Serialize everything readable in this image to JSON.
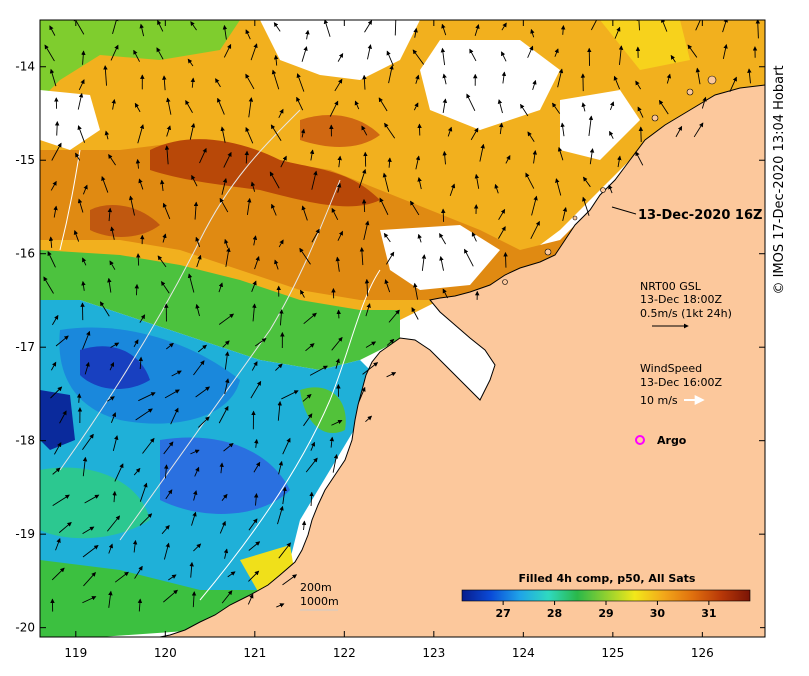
{
  "map": {
    "timestamp": "13-Dec-2020 16Z",
    "x_axis": {
      "ticks": [
        "119",
        "120",
        "121",
        "122",
        "123",
        "124",
        "125",
        "126"
      ],
      "range": [
        118.6,
        126.7
      ]
    },
    "y_axis": {
      "ticks": [
        "-14",
        "-15",
        "-16",
        "-17",
        "-18",
        "-19",
        "-20"
      ],
      "range": [
        -20.1,
        -13.5
      ]
    },
    "colorbar": {
      "title": "Filled 4h comp, p50, All Sats",
      "ticks": [
        "27",
        "28",
        "29",
        "30",
        "31"
      ],
      "range": [
        26.2,
        31.8
      ]
    },
    "legend": {
      "current_title": "NRT00 GSL",
      "current_time": "13-Dec 18:00Z",
      "current_scale": "0.5m/s (1kt 24h)",
      "wind_title": "WindSpeed",
      "wind_time": "13-Dec 16:00Z",
      "wind_scale": "10 m/s",
      "argo_label": "Argo"
    },
    "isobaths": {
      "label_200": "200m",
      "label_1000": "1000m"
    },
    "credit": "IMOS 17-Dec-2020 13:04 Hobart",
    "copyright_symbol": "©",
    "colors": {
      "land": "#fcc89c",
      "no_data": "#ffffff",
      "argo": "#ff00ff",
      "colorbar_stops": [
        "#081c8c",
        "#0a4bd8",
        "#1fa3e8",
        "#2fd9c0",
        "#2ab84a",
        "#8fd030",
        "#f2e81a",
        "#f2a81a",
        "#e0700e",
        "#b83808",
        "#7a1406"
      ]
    }
  }
}
